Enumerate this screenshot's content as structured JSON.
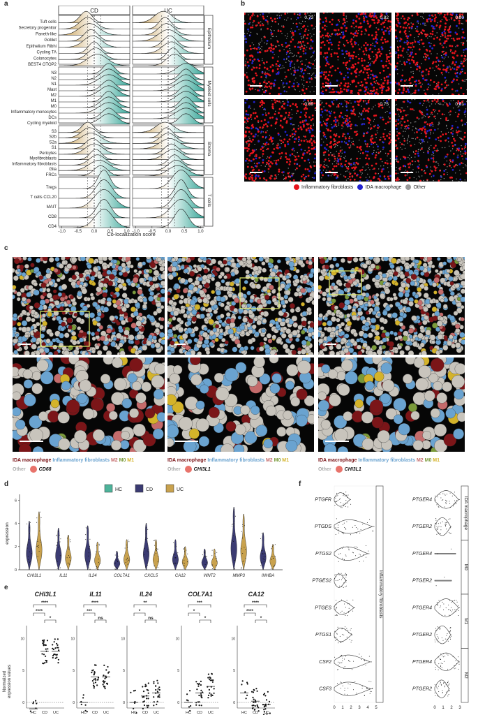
{
  "labels": {
    "a": "a",
    "b": "b",
    "c": "c",
    "d": "d",
    "e": "e",
    "f": "f"
  },
  "panel_a": {
    "facets": [
      "CD",
      "UC"
    ],
    "strips": [
      "Epithelium",
      "Myeloid cells",
      "Stroma",
      "T cells"
    ],
    "groups": [
      [
        "Tuft cells",
        "Secretory progenitor",
        "Paneth-like",
        "Goblet",
        "Epithelium Ribhi",
        "Cycling TA",
        "Colonocytes",
        "BEST4 OTOP2"
      ],
      [
        "N3",
        "N2",
        "N1",
        "Mast",
        "M2",
        "M1",
        "M0",
        "Inflammatory monocytes",
        "DCs",
        "Cycling myeloid"
      ],
      [
        "S3",
        "S2b",
        "S2a",
        "S1",
        "Pericytes",
        "Myofibroblasts",
        "Inflammatory fibroblasts",
        "Glia",
        "FRCs"
      ],
      [
        "Tregs",
        "T cells CCL20",
        "MAIT",
        "CD8",
        "CD4"
      ]
    ],
    "ticks": [
      "-1.0",
      "-0.5",
      "0.0",
      "0.5",
      "1.0"
    ],
    "xlabel": "Co-localization score",
    "colors": {
      "neg": "#c49a4a",
      "pos": "#3aa89a"
    }
  },
  "panel_b": {
    "scores": [
      "0.73",
      "0.82",
      "0.80",
      "0.69",
      "0.75",
      "0.81"
    ],
    "legend": [
      "Inflammatory fibroblasts",
      "IDA macrophage",
      "Other"
    ],
    "colors": {
      "fib": "#e8141c",
      "mac": "#2222d0",
      "other": "#9a9a9a"
    }
  },
  "panel_c": {
    "legends": [
      {
        "items": [
          "IDA macrophage",
          "Inflammatory fibroblasts",
          "M2",
          "M0",
          "M1"
        ],
        "other": "Other",
        "gene": "CD68"
      },
      {
        "items": [
          "IDA macrophage",
          "Inflammatory fibroblasts",
          "M2",
          "M0",
          "M1"
        ],
        "other": "Other",
        "gene": "CHI3L1"
      },
      {
        "items": [
          "IDA macrophage",
          "Inflammatory fibroblasts",
          "M2",
          "M0",
          "M1"
        ],
        "other": "Other",
        "gene": "CHI3L1"
      }
    ],
    "colors": {
      "mac": "#7b1518",
      "fib": "#6aa3d0",
      "m2": "#c46b6b",
      "m0": "#7a9a3a",
      "m1": "#d4b32a",
      "other": "#c8c4bc",
      "gene": "#e8736b"
    }
  },
  "panel_d": {
    "legend": [
      "HC",
      "CD",
      "UC"
    ],
    "colors": {
      "HC": "#4db39a",
      "CD": "#3b3b72",
      "UC": "#c9a24e"
    },
    "ylabel": "expression",
    "yticks": [
      "0",
      "2",
      "4",
      "6"
    ],
    "genes": [
      "CHI3L1",
      "IL11",
      "IL24",
      "COL7A1",
      "CXCL5",
      "CA12",
      "WNT2",
      "MMP3",
      "INHBA"
    ],
    "cd_max": [
      4.2,
      3.6,
      3.8,
      1.6,
      4.0,
      2.6,
      1.8,
      5.4,
      3.2
    ],
    "uc_max": [
      5.0,
      3.0,
      2.4,
      2.6,
      2.6,
      2.0,
      1.8,
      4.8,
      2.2
    ]
  },
  "panel_e": {
    "ylabel": "Normalized\nexpression values",
    "groups": [
      "HC",
      "CD",
      "UC"
    ],
    "plots": [
      {
        "gene": "CHI3L1",
        "ticks": [
          "0",
          "5",
          "10"
        ],
        "brackets": [
          "****",
          "****",
          "*"
        ]
      },
      {
        "gene": "IL11",
        "ticks": [
          "0",
          "5",
          "10"
        ],
        "brackets": [
          "****",
          "***",
          "ns"
        ]
      },
      {
        "gene": "IL24",
        "ticks": [
          "0",
          "5",
          "10"
        ],
        "brackets": [
          "**",
          "*",
          "ns"
        ]
      },
      {
        "gene": "COL7A1",
        "ticks": [
          "0",
          "5",
          "10"
        ],
        "brackets": [
          "***",
          "*",
          "*"
        ]
      },
      {
        "gene": "CA12",
        "ticks": [
          "0",
          "5",
          "10"
        ],
        "brackets": [
          "****",
          "****",
          "*"
        ]
      }
    ]
  },
  "panel_f": {
    "left_genes": [
      "PTGFR",
      "PTGDS",
      "PTGS2",
      "PTGES2",
      "PTGES",
      "PTGS1",
      "CSF2",
      "CSF3"
    ],
    "left_strip": "Inflammatory fibroblasts",
    "right_genes": [
      "PTGER4",
      "PTGER2",
      "PTGER4",
      "PTGER2",
      "PTGER4",
      "PTGER2",
      "PTGER4",
      "PTGER2"
    ],
    "right_strips": [
      "IDA macrophage",
      "M0",
      "M1",
      "M2"
    ],
    "left_ticks": [
      "0",
      "1",
      "2",
      "3",
      "4",
      "5"
    ],
    "right_ticks": [
      "0",
      "1",
      "2",
      "3"
    ]
  }
}
